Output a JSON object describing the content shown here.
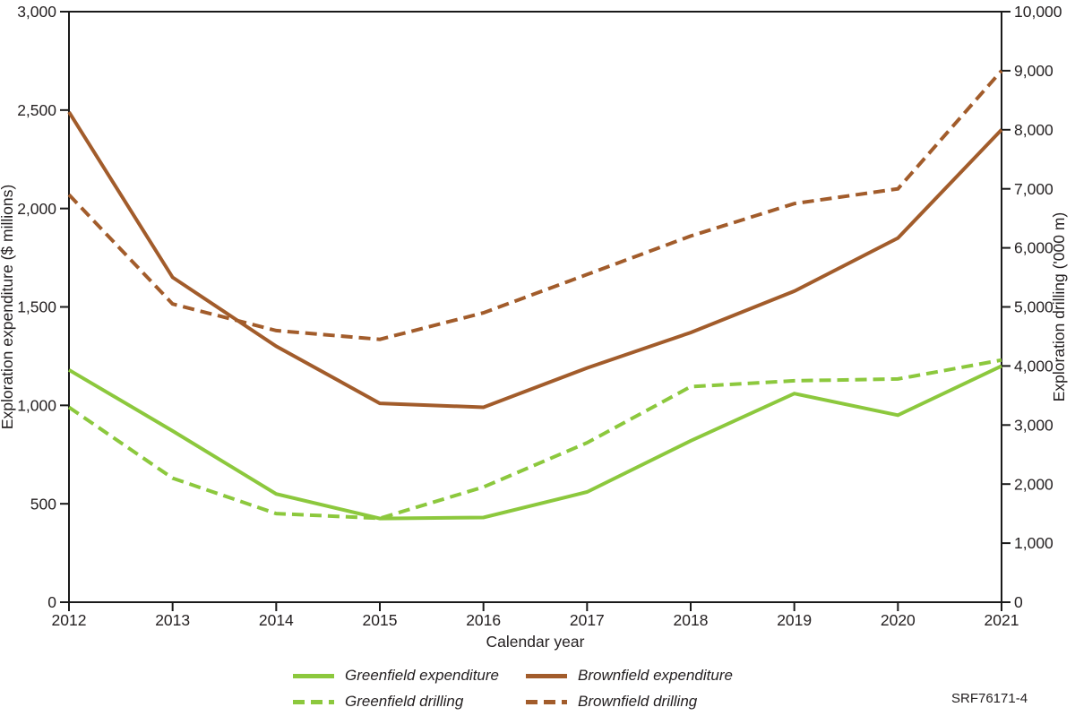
{
  "figure_code": "SRF76171-4",
  "colors": {
    "green": "#8cc83d",
    "brown": "#a25c2b",
    "axis": "#1a1a1a",
    "text": "#231f20"
  },
  "chart_data": {
    "type": "line",
    "x_label": "Calendar year",
    "x_categories": [
      "2012",
      "2013",
      "2014",
      "2015",
      "2016",
      "2017",
      "2018",
      "2019",
      "2020",
      "2021"
    ],
    "left_axis": {
      "label": "Exploration expenditure ($ millions)",
      "min": 0,
      "max": 3000,
      "tick_step": 500,
      "tick_labels": [
        "0",
        "500",
        "1,000",
        "1,500",
        "2,000",
        "2,500",
        "3,000"
      ]
    },
    "right_axis": {
      "label": "Exploration drilling ('000 m)",
      "min": 0,
      "max": 10000,
      "tick_step": 1000,
      "tick_labels": [
        "0",
        "1,000",
        "2,000",
        "3,000",
        "4,000",
        "5,000",
        "6,000",
        "7,000",
        "8,000",
        "9,000",
        "10,000"
      ]
    },
    "grid": false,
    "legend_position": "bottom",
    "series": [
      {
        "name": "Greenfield expenditure",
        "axis": "left",
        "line": "solid",
        "color_key": "green",
        "values": [
          1180,
          870,
          550,
          425,
          430,
          560,
          820,
          1060,
          950,
          1200
        ]
      },
      {
        "name": "Brownfield expenditure",
        "axis": "left",
        "line": "solid",
        "color_key": "brown",
        "values": [
          2490,
          1650,
          1300,
          1010,
          990,
          1190,
          1370,
          1580,
          1850,
          2400
        ]
      },
      {
        "name": "Greenfield drilling",
        "axis": "right",
        "line": "dashed",
        "color_key": "green",
        "values": [
          3300,
          2100,
          1500,
          1420,
          1950,
          2700,
          3650,
          3750,
          3780,
          4100
        ]
      },
      {
        "name": "Brownfield drilling",
        "axis": "right",
        "line": "dashed",
        "color_key": "brown",
        "values": [
          6900,
          5050,
          4600,
          4450,
          4900,
          5550,
          6200,
          6750,
          7000,
          9000
        ]
      }
    ]
  }
}
